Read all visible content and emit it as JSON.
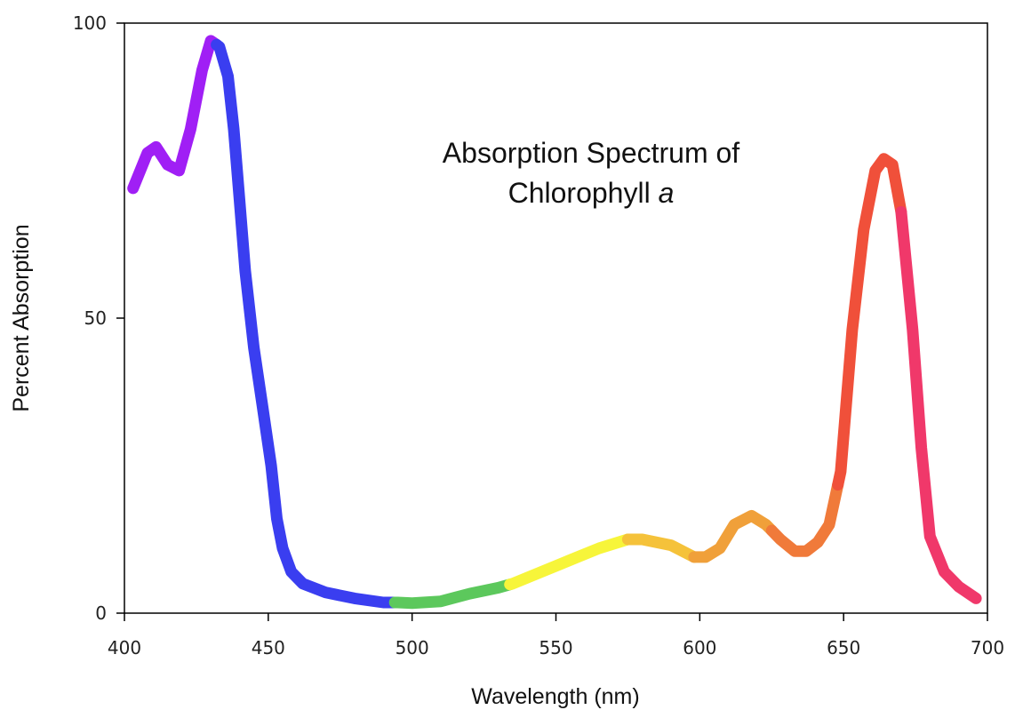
{
  "chart_data": {
    "type": "line",
    "title_line1": "Absorption Spectrum of",
    "title_line2": "Chlorophyll",
    "title_italic": "a",
    "xlabel": "Wavelength (nm)",
    "ylabel": "Percent Absorption",
    "xlim": [
      400,
      700
    ],
    "ylim": [
      0,
      100
    ],
    "x_ticks": [
      400,
      450,
      500,
      550,
      600,
      650,
      700
    ],
    "y_ticks": [
      0,
      50,
      100
    ],
    "grid": false,
    "series": [
      {
        "name": "Chlorophyll a",
        "points": [
          [
            403,
            72
          ],
          [
            408,
            78
          ],
          [
            411,
            79
          ],
          [
            415,
            76
          ],
          [
            419,
            75
          ],
          [
            423,
            82
          ],
          [
            427,
            92
          ],
          [
            430,
            97
          ],
          [
            433,
            96
          ],
          [
            436,
            91
          ],
          [
            438,
            82
          ],
          [
            440,
            70
          ],
          [
            442,
            58
          ],
          [
            445,
            45
          ],
          [
            448,
            35
          ],
          [
            451,
            25
          ],
          [
            453,
            16
          ],
          [
            455,
            11
          ],
          [
            458,
            7
          ],
          [
            462,
            5
          ],
          [
            470,
            3.5
          ],
          [
            480,
            2.5
          ],
          [
            490,
            1.8
          ],
          [
            495,
            1.8
          ],
          [
            500,
            1.7
          ],
          [
            510,
            2
          ],
          [
            520,
            3.3
          ],
          [
            530,
            4.3
          ],
          [
            535,
            5
          ],
          [
            545,
            7
          ],
          [
            555,
            9
          ],
          [
            565,
            11
          ],
          [
            575,
            12.5
          ],
          [
            580,
            12.5
          ],
          [
            590,
            11.5
          ],
          [
            598,
            9.5
          ],
          [
            602,
            9.5
          ],
          [
            607,
            11
          ],
          [
            612,
            15
          ],
          [
            618,
            16.5
          ],
          [
            623,
            15
          ],
          [
            628,
            12.5
          ],
          [
            633,
            10.5
          ],
          [
            637,
            10.5
          ],
          [
            641,
            12
          ],
          [
            645,
            15
          ],
          [
            649,
            24
          ],
          [
            653,
            48
          ],
          [
            657,
            65
          ],
          [
            661,
            75
          ],
          [
            664,
            77
          ],
          [
            667,
            76
          ],
          [
            670,
            68
          ],
          [
            674,
            48
          ],
          [
            677,
            28
          ],
          [
            680,
            13
          ],
          [
            685,
            7
          ],
          [
            690,
            4.5
          ],
          [
            696,
            2.5
          ]
        ]
      }
    ],
    "color_segments": [
      {
        "from": 403,
        "to": 432,
        "color": "#a01ff5"
      },
      {
        "from": 432,
        "to": 494,
        "color": "#3a3ef0"
      },
      {
        "from": 494,
        "to": 534,
        "color": "#5cc85c"
      },
      {
        "from": 534,
        "to": 575,
        "color": "#f7f53a"
      },
      {
        "from": 575,
        "to": 598,
        "color": "#f5c23a"
      },
      {
        "from": 598,
        "to": 625,
        "color": "#f0a03a"
      },
      {
        "from": 625,
        "to": 648,
        "color": "#f07a3a"
      },
      {
        "from": 648,
        "to": 670,
        "color": "#f0503a"
      },
      {
        "from": 670,
        "to": 696,
        "color": "#f0386a"
      }
    ]
  }
}
